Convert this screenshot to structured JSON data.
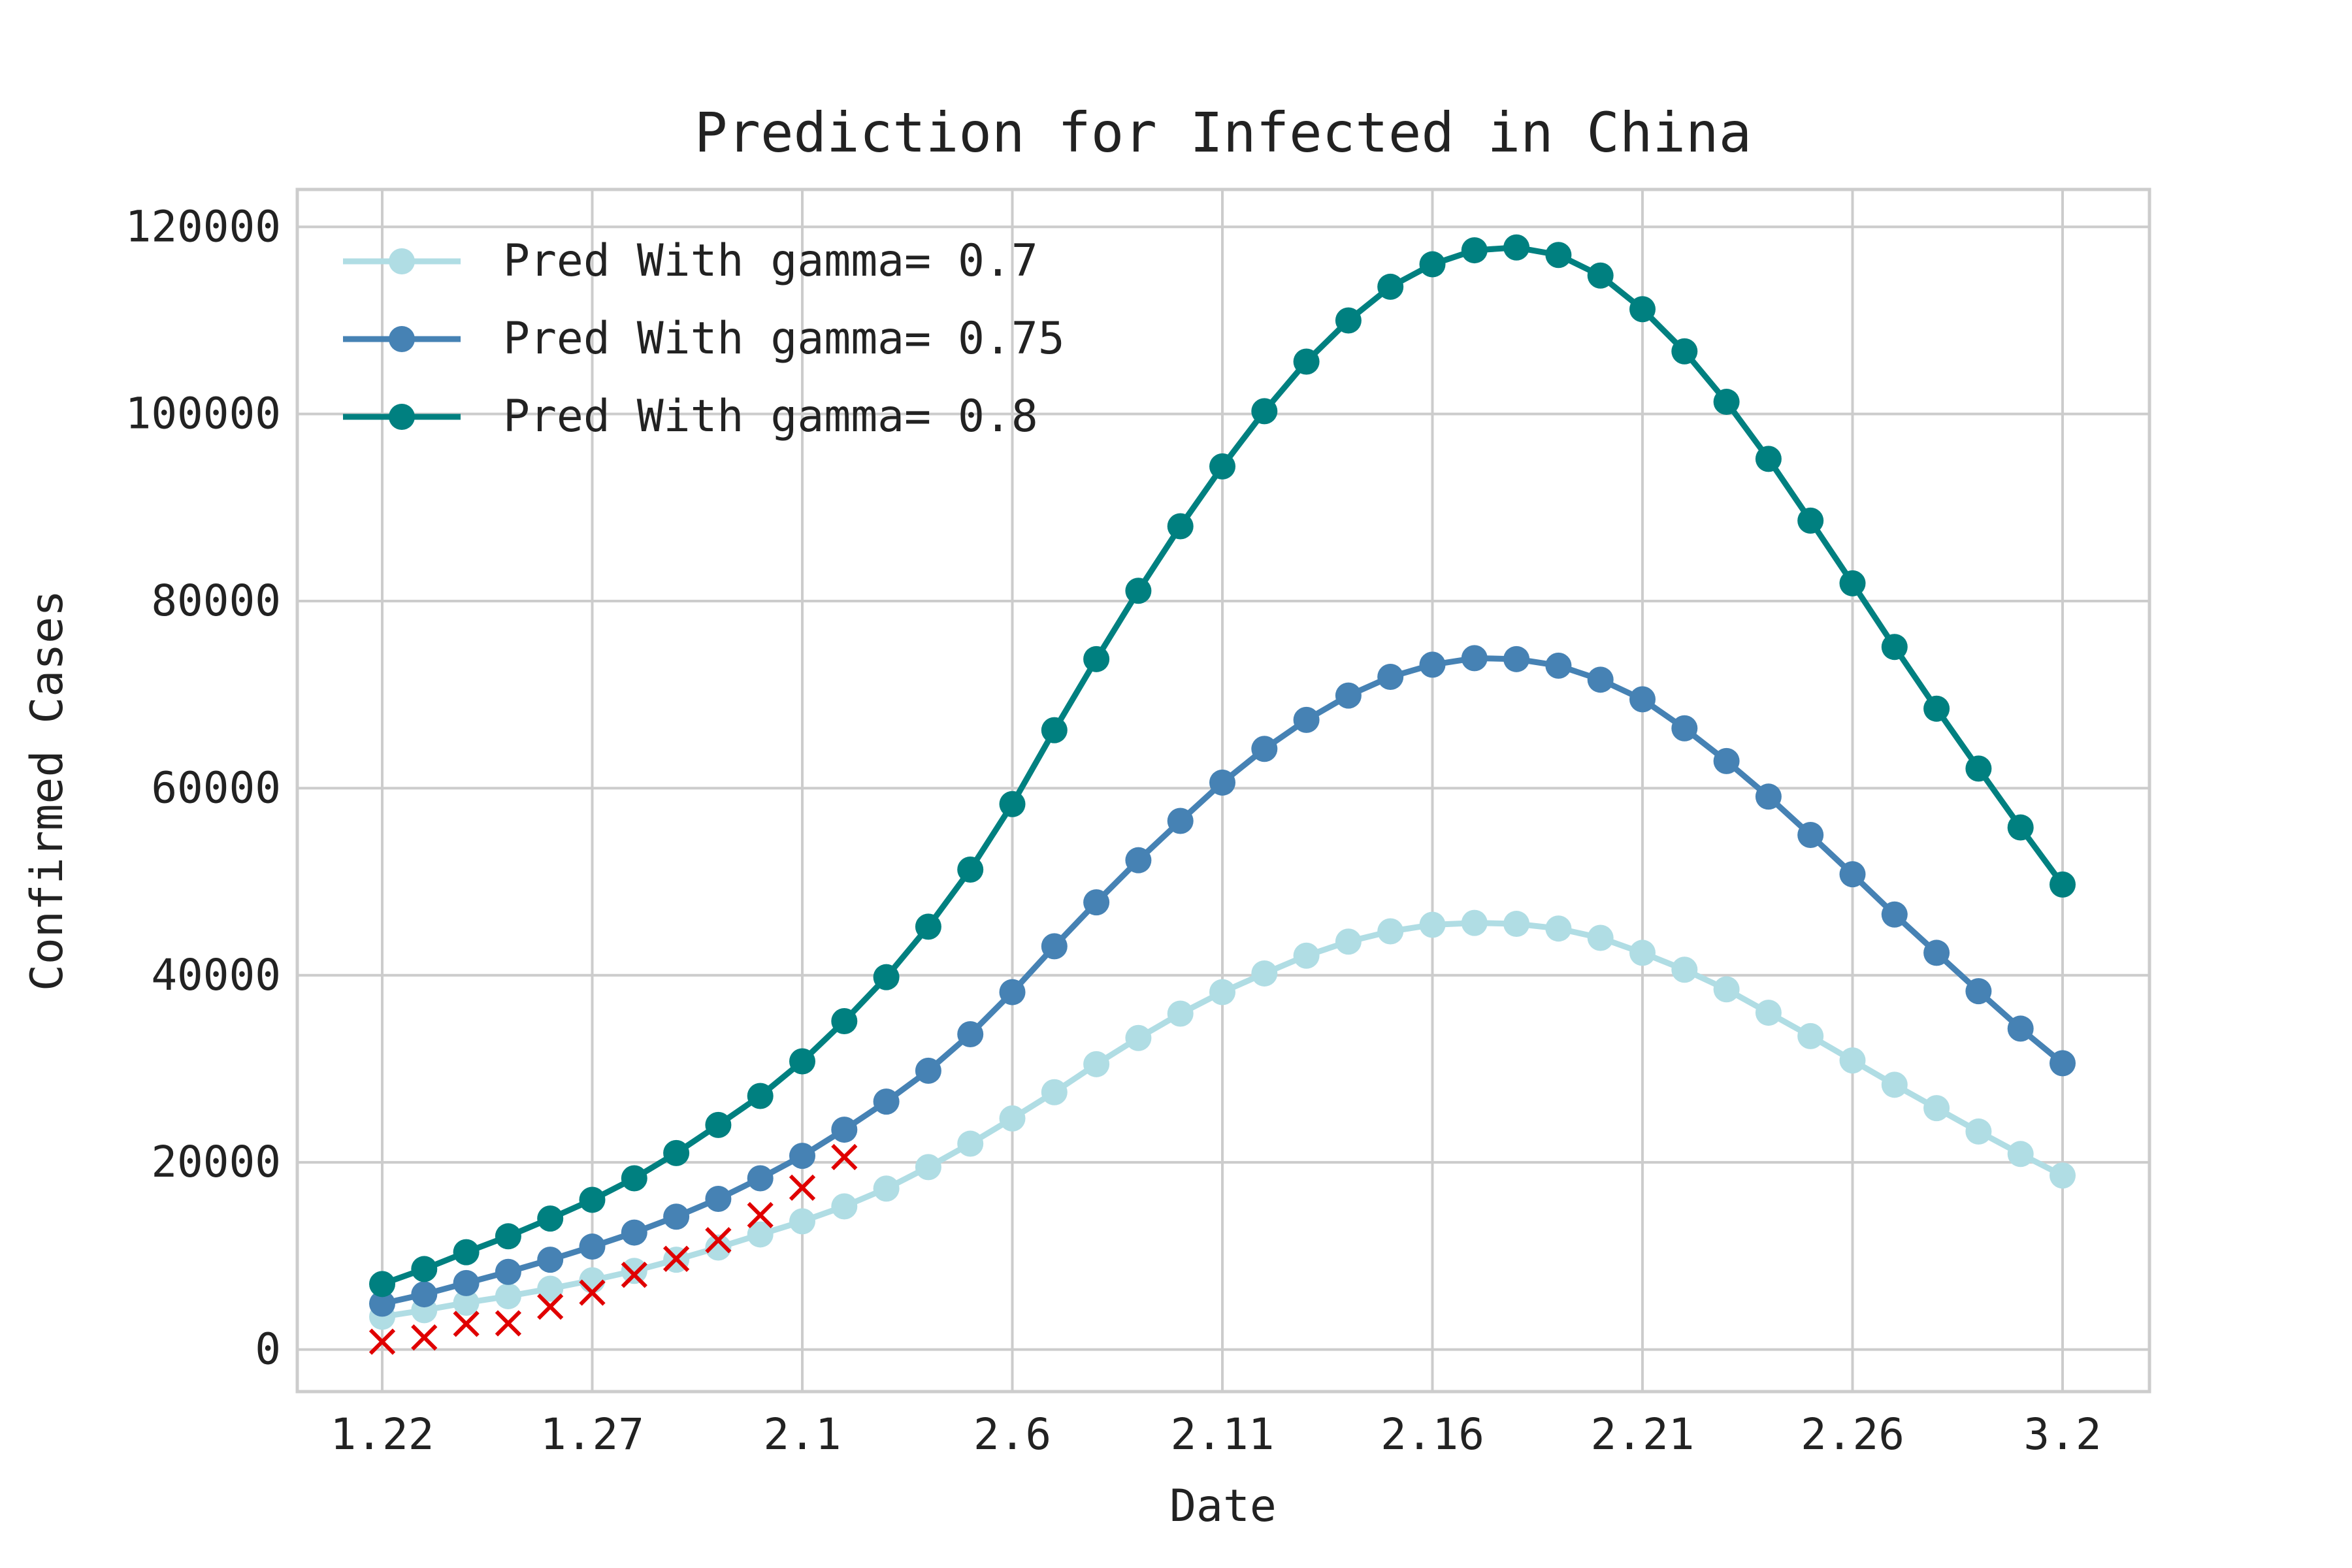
{
  "chart_data": {
    "type": "line",
    "title": "Prediction for Infected in China",
    "xlabel": "Date",
    "ylabel": "Confirmed Cases",
    "ylim": [
      -4500,
      124000
    ],
    "grid": true,
    "legend": "top-left",
    "x": [
      "1.22",
      "1.23",
      "1.24",
      "1.25",
      "1.26",
      "1.27",
      "1.28",
      "1.29",
      "1.30",
      "1.31",
      "2.1",
      "2.2",
      "2.3",
      "2.4",
      "2.5",
      "2.6",
      "2.7",
      "2.8",
      "2.9",
      "2.10",
      "2.11",
      "2.12",
      "2.13",
      "2.14",
      "2.15",
      "2.16",
      "2.17",
      "2.18",
      "2.19",
      "2.20",
      "2.21",
      "2.22",
      "2.23",
      "2.24",
      "2.25",
      "2.26",
      "2.27",
      "2.28",
      "2.29",
      "3.1",
      "3.2"
    ],
    "xticks": [
      "1.22",
      "1.27",
      "2.1",
      "2.6",
      "2.11",
      "2.16",
      "2.21",
      "2.26",
      "3.2"
    ],
    "yticks": [
      "0",
      "20000",
      "40000",
      "60000",
      "80000",
      "100000",
      "120000"
    ],
    "series": [
      {
        "name": "Pred With gamma= 0.7",
        "color": "#b0dde4",
        "values": [
          3500,
          4200,
          5000,
          5700,
          6500,
          7400,
          8400,
          9600,
          10900,
          12300,
          13700,
          15300,
          17200,
          19500,
          22000,
          24700,
          27500,
          30500,
          33300,
          35900,
          38200,
          40200,
          42100,
          43600,
          44700,
          45400,
          45600,
          45500,
          45000,
          44000,
          42400,
          40600,
          38500,
          36000,
          33500,
          30900,
          28300,
          25800,
          23300,
          20900,
          18600
        ]
      },
      {
        "name": "Pred With gamma= 0.75",
        "color": "#4682b4",
        "values": [
          4900,
          5900,
          7100,
          8300,
          9600,
          11000,
          12500,
          14200,
          16100,
          18300,
          20700,
          23500,
          26500,
          29800,
          33700,
          38200,
          43100,
          47800,
          52300,
          56500,
          60600,
          64200,
          67300,
          69900,
          71900,
          73200,
          73900,
          73800,
          73100,
          71600,
          69500,
          66400,
          62900,
          59100,
          55000,
          50800,
          46500,
          42400,
          38300,
          34300,
          30600
        ]
      },
      {
        "name": "Pred With gamma= 0.8",
        "color": "#008080",
        "values": [
          7000,
          8600,
          10400,
          12100,
          14000,
          16000,
          18300,
          21000,
          24000,
          27100,
          30800,
          35100,
          39800,
          45200,
          51300,
          58300,
          66200,
          73800,
          81100,
          88000,
          94400,
          100300,
          105600,
          110000,
          113600,
          116000,
          117500,
          117800,
          117000,
          114800,
          111200,
          106700,
          101300,
          95200,
          88600,
          81900,
          75100,
          68500,
          62100,
          55800,
          49700
        ]
      }
    ],
    "observed": {
      "color": "#e00000",
      "marker": "x",
      "values": [
        830,
        1287,
        2741,
        2800,
        4580,
        6078,
        7985,
        9698,
        11685,
        14362,
        17300,
        20570
      ]
    }
  }
}
